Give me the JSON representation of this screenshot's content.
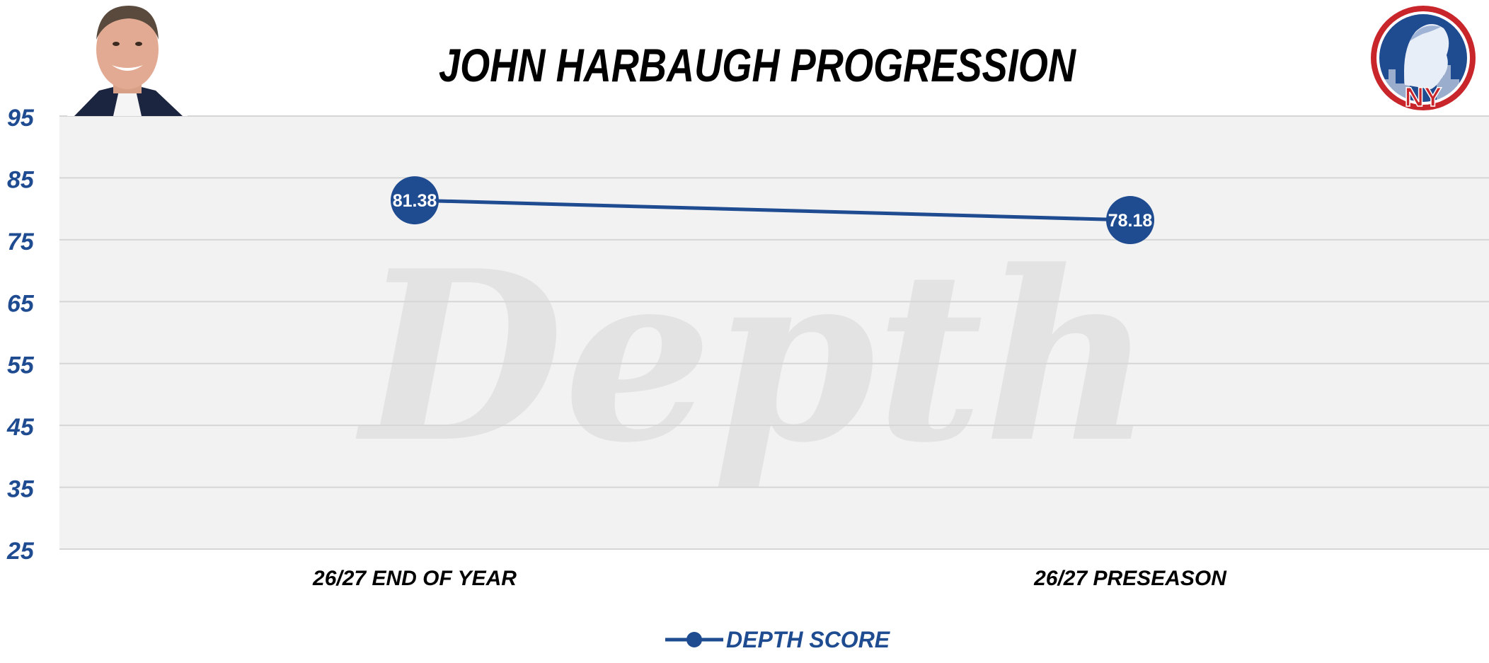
{
  "chart_data": {
    "type": "line",
    "title": "JOHN HARBAUGH PROGRESSION",
    "categories": [
      "26/27 END OF YEAR",
      "26/27 PRESEASON"
    ],
    "series": [
      {
        "name": "DEPTH SCORE",
        "values": [
          81.38,
          78.18
        ],
        "data_labels": [
          "81.38",
          "78.18"
        ]
      }
    ],
    "ylim": [
      25,
      95
    ],
    "yticks": [
      95,
      85,
      75,
      65,
      55,
      45,
      35,
      25
    ],
    "ytick_labels": [
      "95",
      "85",
      "75",
      "65",
      "55",
      "45",
      "35",
      "25"
    ],
    "grid": true,
    "legend_position": "bottom-center",
    "watermark": "Depth",
    "logo_text": "NY",
    "colors": {
      "series": "#1f4b91",
      "plot_background": "#f2f2f2",
      "grid": "#d6d6d6",
      "watermark": "#e3e3e3",
      "logo_red": "#c8262b"
    }
  }
}
